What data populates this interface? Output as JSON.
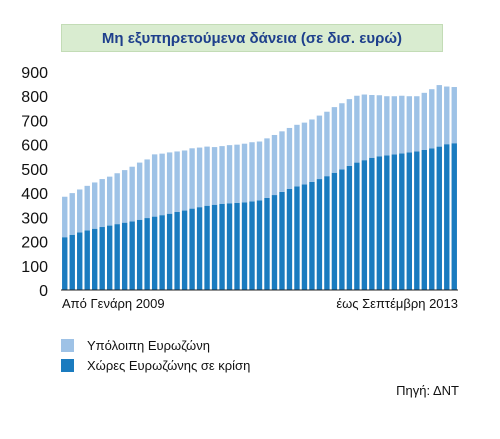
{
  "chart_data": {
    "type": "bar",
    "stacked": true,
    "title": "Μη εξυπηρετούμενα δάνεια (σε δισ. ευρώ)",
    "ylim": [
      0,
      900
    ],
    "yticks": [
      0,
      100,
      200,
      300,
      400,
      500,
      600,
      700,
      800,
      900
    ],
    "x_start_label": "Από Γενάρη 2009",
    "x_end_label": "έως Σεπτέμβρη 2013",
    "grid": false,
    "legend_position": "bottom-left",
    "series": [
      {
        "name": "Χώρες Ευρωζώνης σε κρίση",
        "color": "#1a7bbf",
        "values": [
          218,
          228,
          238,
          246,
          253,
          260,
          266,
          272,
          278,
          283,
          290,
          297,
          303,
          309,
          315,
          322,
          328,
          336,
          342,
          348,
          352,
          356,
          358,
          360,
          362,
          366,
          370,
          380,
          392,
          405,
          417,
          428,
          436,
          446,
          458,
          470,
          484,
          498,
          512,
          526,
          536,
          546,
          552,
          556,
          560,
          564,
          568,
          572,
          578,
          585,
          592,
          602,
          606
        ]
      },
      {
        "name": "Υπόλοιπη Ευρωζώνη",
        "color": "#9ec2e6",
        "values": [
          167,
          172,
          177,
          184,
          191,
          198,
          202,
          210,
          217,
          226,
          236,
          242,
          257,
          254,
          253,
          250,
          248,
          249,
          246,
          244,
          238,
          238,
          240,
          240,
          242,
          244,
          243,
          246,
          248,
          250,
          252,
          254,
          255,
          258,
          262,
          266,
          271,
          273,
          276,
          276,
          271,
          259,
          252,
          244,
          240,
          238,
          232,
          228,
          236,
          244,
          254,
          238,
          232
        ]
      }
    ]
  },
  "source": "Πηγή: ΔΝΤ"
}
